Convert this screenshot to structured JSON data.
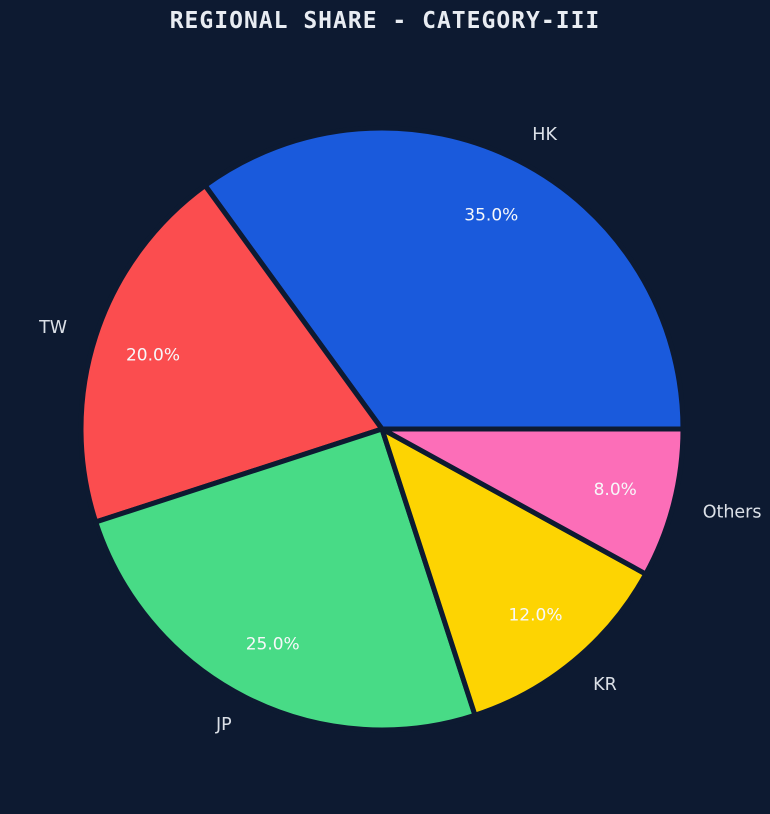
{
  "title": "REGIONAL SHARE - CATEGORY-III",
  "colors": {
    "background": "#0d1a31",
    "title_text": "#e8ecf2",
    "slice_label_text": "#dbe0e7",
    "pct_label_text": "#f7f8fa"
  },
  "chart_data": {
    "type": "pie",
    "title": "REGIONAL SHARE - CATEGORY-III",
    "slices": [
      {
        "label": "HK",
        "value": 35.0,
        "pct_label": "35.0%",
        "color": "#1a5adc"
      },
      {
        "label": "TW",
        "value": 20.0,
        "pct_label": "20.0%",
        "color": "#fb4d4f"
      },
      {
        "label": "JP",
        "value": 25.0,
        "pct_label": "25.0%",
        "color": "#48db86"
      },
      {
        "label": "KR",
        "value": 12.0,
        "pct_label": "12.0%",
        "color": "#fdd402"
      },
      {
        "label": "Others",
        "value": 8.0,
        "pct_label": "8.0%",
        "color": "#fc6eb8"
      }
    ],
    "layout": {
      "start_angle": 0,
      "direction": "counterclockwise",
      "center": [
        382,
        429
      ],
      "radius": 301,
      "label_distance": 1.1,
      "pct_distance": 0.8,
      "slice_gap": 5,
      "legend": "none",
      "grid": false
    }
  }
}
